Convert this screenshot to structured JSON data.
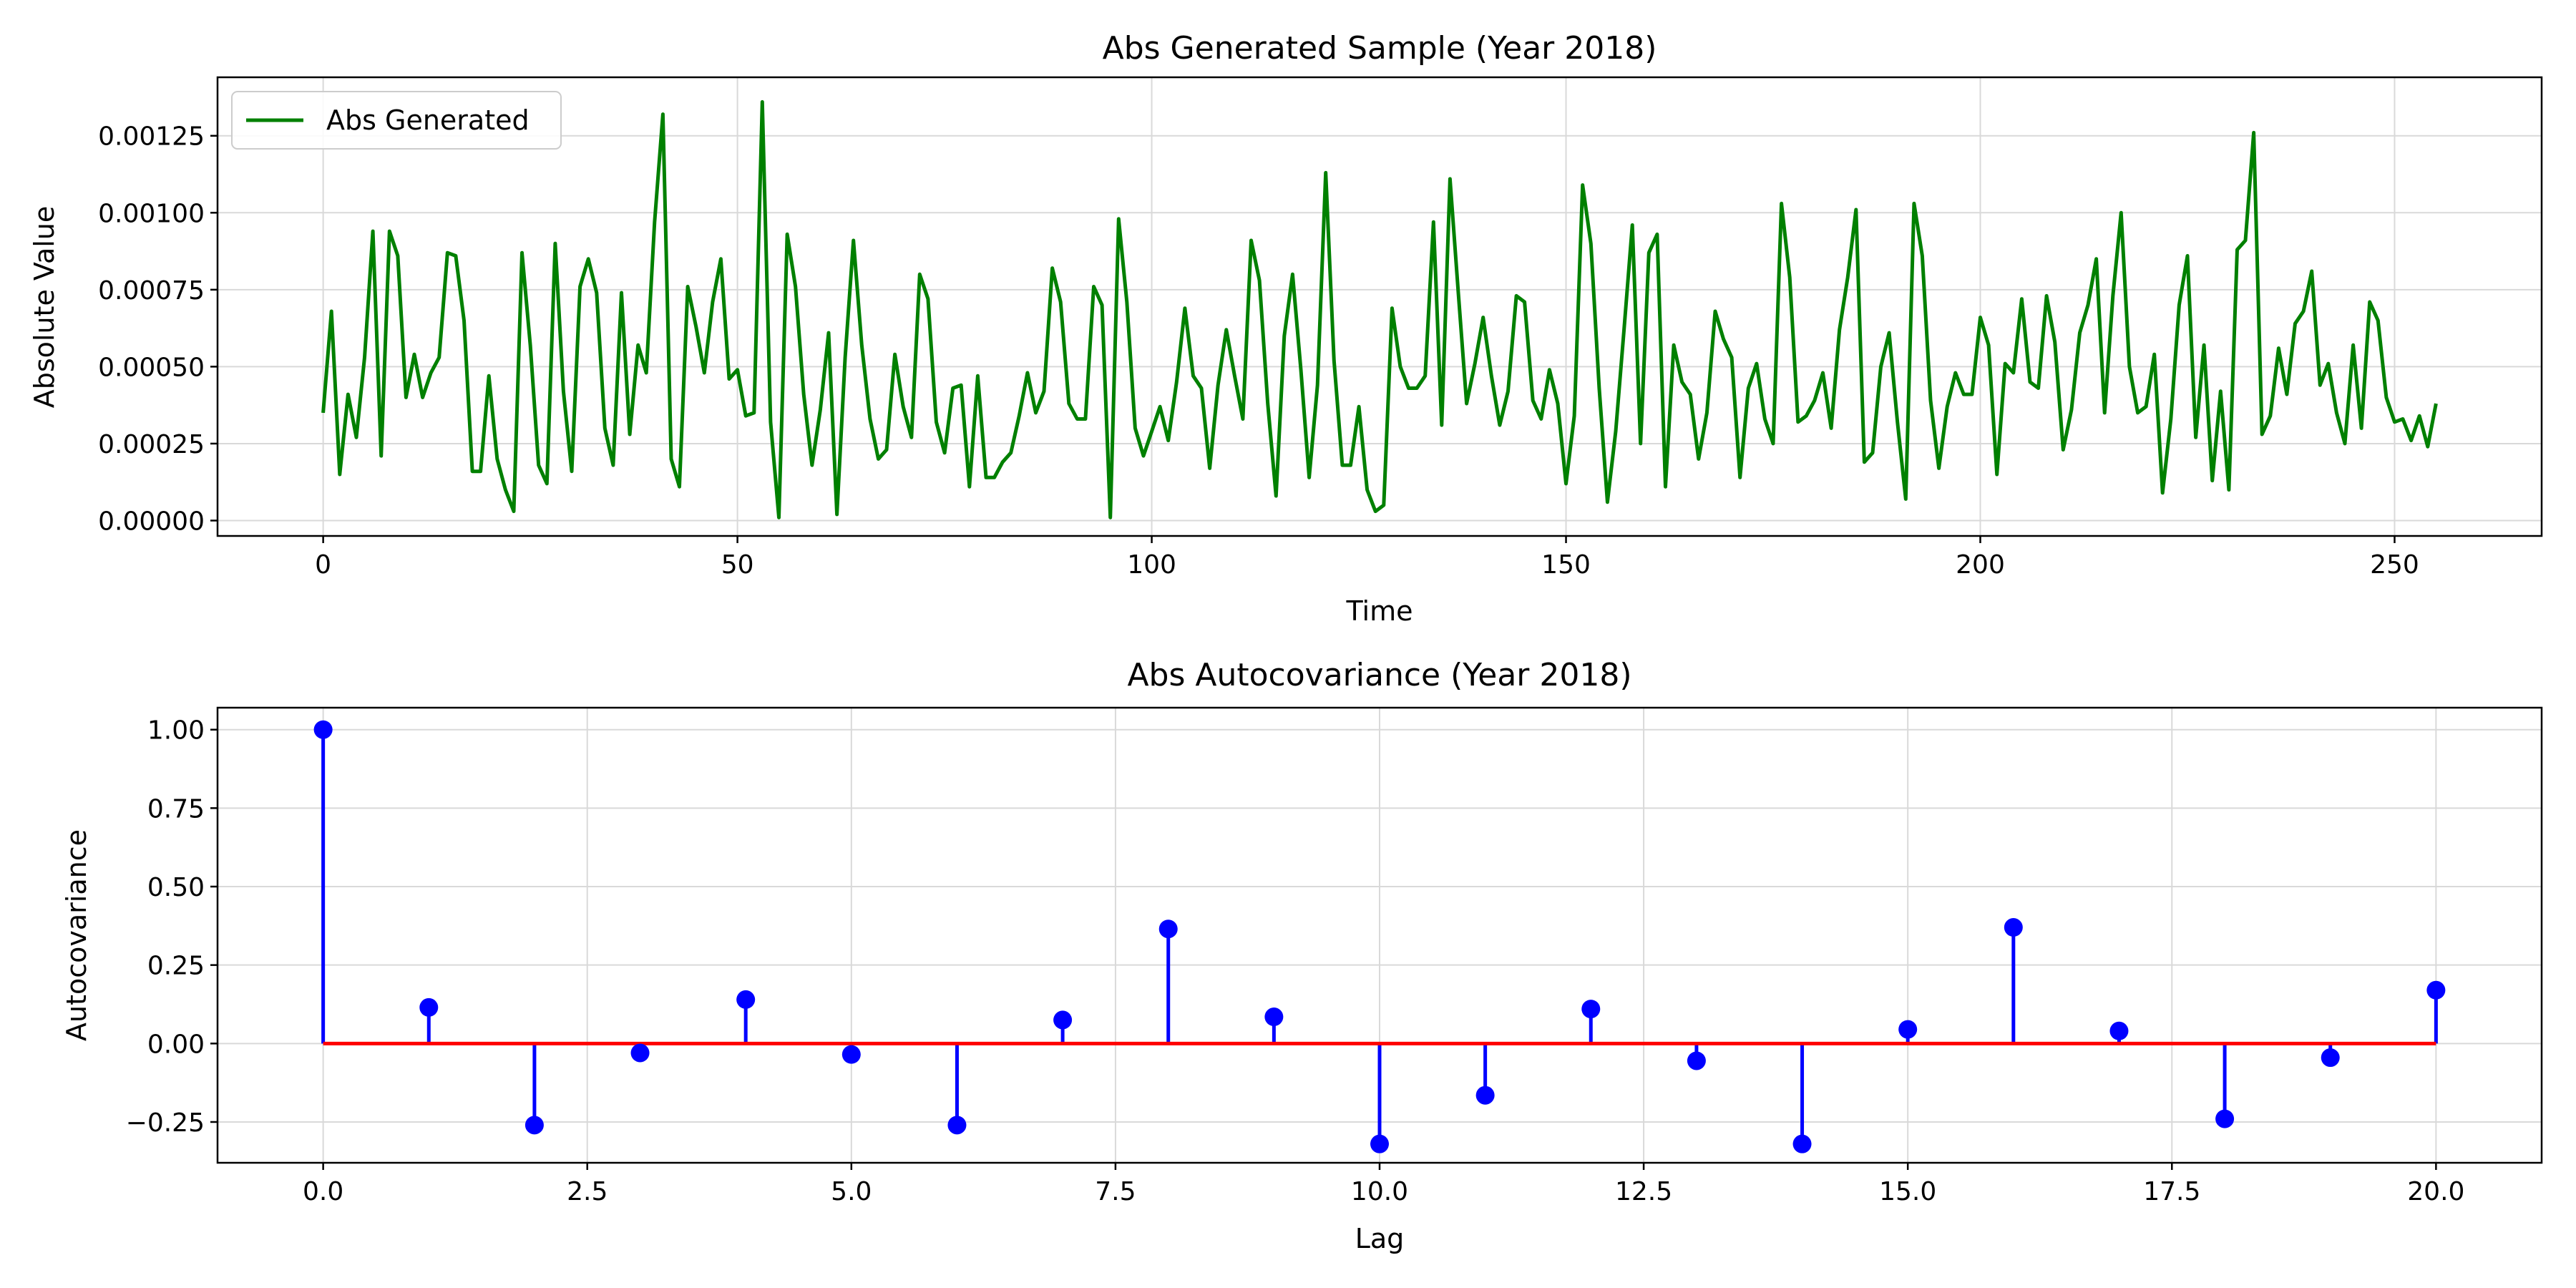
{
  "chart_data": [
    {
      "type": "line",
      "title": "Abs Generated Sample (Year 2018)",
      "xlabel": "Time",
      "ylabel": "Absolute Value",
      "xlim": [
        -12.75,
        267.75
      ],
      "ylim": [
        -5e-05,
        0.00144
      ],
      "xticks": [
        0,
        50,
        100,
        150,
        200,
        250
      ],
      "xtick_labels": [
        "0",
        "50",
        "100",
        "150",
        "200",
        "250"
      ],
      "yticks": [
        0,
        0.00025,
        0.0005,
        0.00075,
        0.001,
        0.00125
      ],
      "ytick_labels": [
        "0.00000",
        "0.00025",
        "0.00050",
        "0.00075",
        "0.00100",
        "0.00125"
      ],
      "grid": true,
      "legend_position": "top-left",
      "series": [
        {
          "name": "Abs Generated",
          "color": "#008000",
          "y": [
            0.00035,
            0.00068,
            0.00015,
            0.00041,
            0.00027,
            0.00053,
            0.00094,
            0.00021,
            0.00094,
            0.00086,
            0.0004,
            0.00054,
            0.0004,
            0.00048,
            0.00053,
            0.00087,
            0.00086,
            0.00065,
            0.00016,
            0.00016,
            0.00047,
            0.0002,
            0.0001,
            3e-05,
            0.00087,
            0.00057,
            0.00018,
            0.00012,
            0.0009,
            0.00042,
            0.00016,
            0.00076,
            0.00085,
            0.00074,
            0.0003,
            0.00018,
            0.00074,
            0.00028,
            0.00057,
            0.00048,
            0.00097,
            0.00132,
            0.0002,
            0.00011,
            0.00076,
            0.00063,
            0.00048,
            0.00071,
            0.00085,
            0.00046,
            0.00049,
            0.00034,
            0.00035,
            0.00136,
            0.00032,
            1e-05,
            0.00093,
            0.00076,
            0.00041,
            0.00018,
            0.00036,
            0.00061,
            2e-05,
            0.00053,
            0.00091,
            0.00057,
            0.00033,
            0.0002,
            0.00023,
            0.00054,
            0.00037,
            0.00027,
            0.0008,
            0.00072,
            0.00032,
            0.00022,
            0.00043,
            0.00044,
            0.00011,
            0.00047,
            0.00014,
            0.00014,
            0.00019,
            0.00022,
            0.00034,
            0.00048,
            0.00035,
            0.00042,
            0.00082,
            0.00071,
            0.00038,
            0.00033,
            0.00033,
            0.00076,
            0.0007,
            1e-05,
            0.00098,
            0.00071,
            0.0003,
            0.00021,
            0.00029,
            0.00037,
            0.00026,
            0.00045,
            0.00069,
            0.00047,
            0.00043,
            0.00017,
            0.00044,
            0.00062,
            0.00047,
            0.00033,
            0.00091,
            0.00078,
            0.00038,
            8e-05,
            0.0006,
            0.0008,
            0.00049,
            0.00014,
            0.00044,
            0.00113,
            0.00052,
            0.00018,
            0.00018,
            0.00037,
            0.0001,
            3e-05,
            5e-05,
            0.00069,
            0.0005,
            0.00043,
            0.00043,
            0.00047,
            0.00097,
            0.00031,
            0.00111,
            0.00074,
            0.00038,
            0.00051,
            0.00066,
            0.00047,
            0.00031,
            0.00042,
            0.00073,
            0.00071,
            0.00039,
            0.00033,
            0.00049,
            0.00038,
            0.00012,
            0.00034,
            0.00109,
            0.0009,
            0.00043,
            6e-05,
            0.00029,
            0.00062,
            0.00096,
            0.00025,
            0.00087,
            0.00093,
            0.00011,
            0.00057,
            0.00045,
            0.00041,
            0.0002,
            0.00035,
            0.00068,
            0.00059,
            0.00053,
            0.00014,
            0.00043,
            0.00051,
            0.00033,
            0.00025,
            0.00103,
            0.00079,
            0.00032,
            0.00034,
            0.00039,
            0.00048,
            0.0003,
            0.00062,
            0.00079,
            0.00101,
            0.00019,
            0.00022,
            0.0005,
            0.00061,
            0.00032,
            7e-05,
            0.00103,
            0.00086,
            0.00039,
            0.00017,
            0.00037,
            0.00048,
            0.00041,
            0.00041,
            0.00066,
            0.00057,
            0.00015,
            0.00051,
            0.00048,
            0.00072,
            0.00045,
            0.00043,
            0.00073,
            0.00058,
            0.00023,
            0.00036,
            0.00061,
            0.0007,
            0.00085,
            0.00035,
            0.00073,
            0.001,
            0.0005,
            0.00035,
            0.00037,
            0.00054,
            9e-05,
            0.00033,
            0.0007,
            0.00086,
            0.00027,
            0.00057,
            0.00013,
            0.00042,
            0.0001,
            0.00088,
            0.00091,
            0.00126,
            0.00028,
            0.00034,
            0.00056,
            0.00041,
            0.00064,
            0.00068,
            0.00081,
            0.00044,
            0.00051,
            0.00035,
            0.00025,
            0.00057,
            0.0003,
            0.00071,
            0.00065,
            0.0004,
            0.00032,
            0.00033,
            0.00026,
            0.00034,
            0.00024,
            0.00038
          ]
        }
      ]
    },
    {
      "type": "stem",
      "title": "Abs Autocovariance (Year 2018)",
      "xlabel": "Lag",
      "ylabel": "Autocovariance",
      "xlim": [
        -1,
        21
      ],
      "ylim": [
        -0.38,
        1.07
      ],
      "xticks": [
        0,
        2.5,
        5,
        7.5,
        10,
        12.5,
        15,
        17.5,
        20
      ],
      "xtick_labels": [
        "0.0",
        "2.5",
        "5.0",
        "7.5",
        "10.0",
        "12.5",
        "15.0",
        "17.5",
        "20.0"
      ],
      "yticks": [
        -0.25,
        0,
        0.25,
        0.5,
        0.75,
        1.0
      ],
      "ytick_labels": [
        "−0.25",
        "0.00",
        "0.25",
        "0.50",
        "0.75",
        "1.00"
      ],
      "grid": true,
      "stem_color": "#0000ff",
      "baseline_color": "#ff0000",
      "x": [
        0,
        1,
        2,
        3,
        4,
        5,
        6,
        7,
        8,
        9,
        10,
        11,
        12,
        13,
        14,
        15,
        16,
        17,
        18,
        19,
        20
      ],
      "values": [
        1.0,
        0.115,
        -0.26,
        -0.03,
        0.14,
        -0.035,
        -0.26,
        0.075,
        0.365,
        0.085,
        -0.32,
        -0.165,
        0.11,
        -0.055,
        -0.32,
        0.045,
        0.37,
        0.04,
        -0.24,
        -0.045,
        0.17
      ]
    }
  ]
}
